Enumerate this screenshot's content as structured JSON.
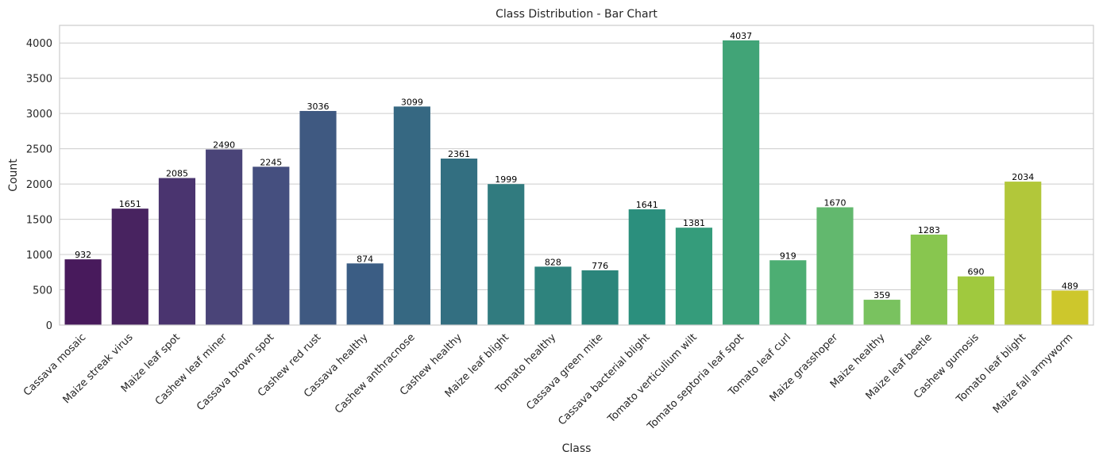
{
  "chart_data": {
    "type": "bar",
    "title": "Class Distribution - Bar Chart",
    "xlabel": "Class",
    "ylabel": "Count",
    "ylim": [
      0,
      4250
    ],
    "yticks": [
      0,
      500,
      1000,
      1500,
      2000,
      2500,
      3000,
      3500,
      4000
    ],
    "grid": true,
    "categories": [
      "Cassava mosaic",
      "Maize streak virus",
      "Maize leaf spot",
      "Cashew leaf miner",
      "Cassava brown spot",
      "Cashew red rust",
      "Cassava healthy",
      "Cashew anthracnose",
      "Cashew healthy",
      "Maize leaf blight",
      "Tomato healthy",
      "Cassava green mite",
      "Cassava bacterial blight",
      "Tomato verticulium wilt",
      "Tomato septoria leaf spot",
      "Tomato leaf curl",
      "Maize grasshoper",
      "Maize healthy",
      "Maize leaf beetle",
      "Cashew gumosis",
      "Tomato leaf blight",
      "Maize fall armyworm"
    ],
    "values": [
      932,
      1651,
      2085,
      2490,
      2245,
      3036,
      874,
      3099,
      2361,
      1999,
      828,
      776,
      1641,
      1381,
      4037,
      919,
      1670,
      359,
      1283,
      690,
      2034,
      489
    ],
    "colors": [
      "#481a5c",
      "#482360",
      "#4a346f",
      "#4a4478",
      "#454f7f",
      "#3f5981",
      "#3b5d84",
      "#366882",
      "#336f81",
      "#317b7f",
      "#2e837d",
      "#2b857b",
      "#2b8f7d",
      "#359c7b",
      "#41a477",
      "#4dae73",
      "#62b86e",
      "#79c25f",
      "#88c64f",
      "#a0c93e",
      "#b2c73a",
      "#cdc72c"
    ]
  }
}
